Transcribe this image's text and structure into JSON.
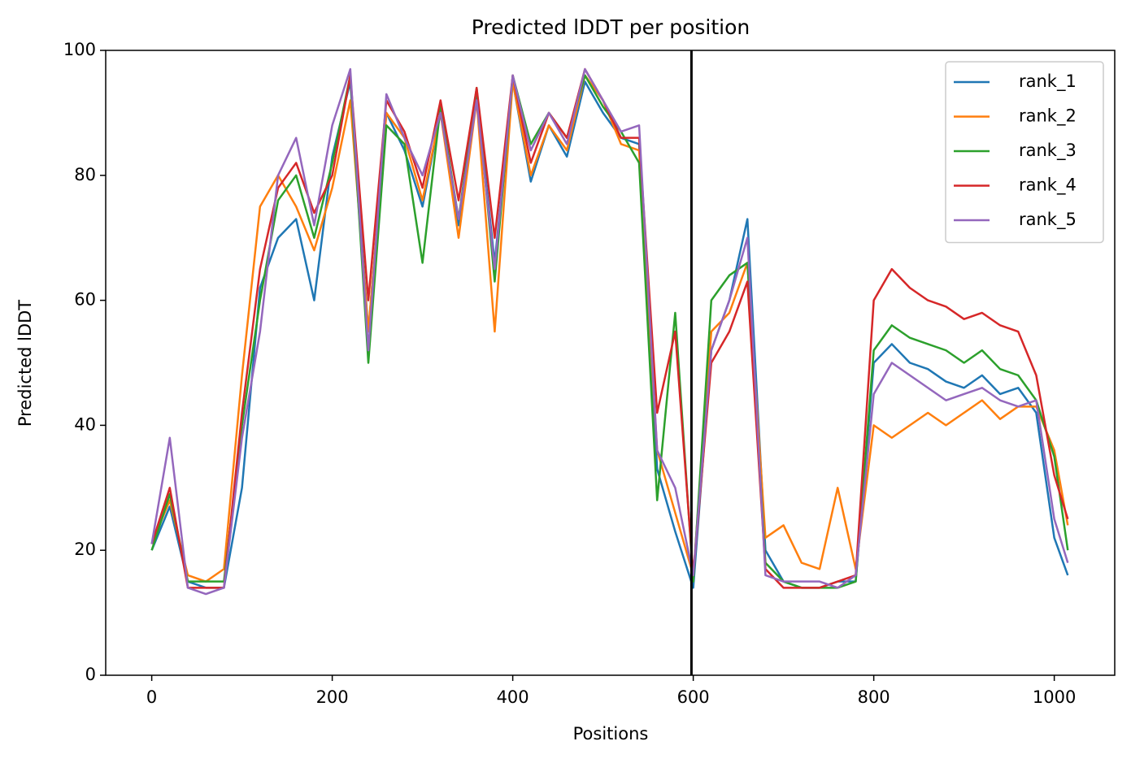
{
  "chart_data": {
    "type": "line",
    "title": "Predicted lDDT per position",
    "xlabel": "Positions",
    "ylabel": "Predicted lDDT",
    "x": [
      0,
      20,
      40,
      60,
      80,
      100,
      120,
      140,
      160,
      180,
      200,
      220,
      240,
      260,
      280,
      300,
      320,
      340,
      360,
      380,
      400,
      420,
      440,
      460,
      480,
      500,
      520,
      540,
      560,
      580,
      600,
      620,
      640,
      660,
      680,
      700,
      720,
      740,
      760,
      780,
      800,
      820,
      840,
      860,
      880,
      900,
      920,
      940,
      960,
      980,
      1000,
      1015
    ],
    "series": [
      {
        "name": "rank_1",
        "color": "#1f77b4",
        "values": [
          20,
          27,
          15,
          14,
          14,
          30,
          62,
          70,
          73,
          60,
          83,
          95,
          55,
          90,
          84,
          75,
          90,
          72,
          93,
          66,
          95,
          79,
          88,
          83,
          95,
          90,
          86,
          85,
          33,
          23,
          14,
          52,
          60,
          73,
          20,
          15,
          14,
          14,
          15,
          15,
          50,
          53,
          50,
          49,
          47,
          46,
          48,
          45,
          46,
          42,
          22,
          16
        ]
      },
      {
        "name": "rank_2",
        "color": "#ff7f0e",
        "values": [
          21,
          28,
          16,
          15,
          17,
          48,
          75,
          80,
          75,
          68,
          78,
          92,
          55,
          90,
          86,
          76,
          90,
          70,
          92,
          55,
          95,
          80,
          88,
          84,
          96,
          92,
          85,
          84,
          36,
          26,
          16,
          55,
          58,
          66,
          22,
          24,
          18,
          17,
          30,
          17,
          40,
          38,
          40,
          42,
          40,
          42,
          44,
          41,
          43,
          43,
          36,
          24
        ]
      },
      {
        "name": "rank_3",
        "color": "#2ca02c",
        "values": [
          20,
          29,
          15,
          15,
          15,
          40,
          60,
          76,
          80,
          70,
          82,
          96,
          50,
          88,
          85,
          66,
          91,
          73,
          94,
          63,
          96,
          85,
          90,
          86,
          96,
          91,
          87,
          82,
          28,
          58,
          15,
          60,
          64,
          66,
          18,
          15,
          14,
          14,
          14,
          15,
          52,
          56,
          54,
          53,
          52,
          50,
          52,
          49,
          48,
          44,
          35,
          20
        ]
      },
      {
        "name": "rank_4",
        "color": "#d62728",
        "values": [
          21,
          30,
          14,
          14,
          14,
          42,
          65,
          78,
          82,
          74,
          80,
          96,
          60,
          92,
          87,
          78,
          92,
          76,
          94,
          70,
          96,
          82,
          90,
          86,
          97,
          92,
          86,
          86,
          42,
          55,
          16,
          50,
          55,
          63,
          17,
          14,
          14,
          14,
          15,
          16,
          60,
          65,
          62,
          60,
          59,
          57,
          58,
          56,
          55,
          48,
          32,
          25
        ]
      },
      {
        "name": "rank_5",
        "color": "#9467bd",
        "values": [
          21,
          38,
          14,
          13,
          14,
          38,
          55,
          80,
          86,
          72,
          88,
          97,
          52,
          93,
          86,
          80,
          90,
          73,
          92,
          65,
          96,
          84,
          90,
          85,
          97,
          92,
          87,
          88,
          36,
          30,
          16,
          52,
          60,
          70,
          16,
          15,
          15,
          15,
          14,
          16,
          45,
          50,
          48,
          46,
          44,
          45,
          46,
          44,
          43,
          44,
          25,
          18
        ]
      }
    ],
    "vline_x": 598,
    "vline_color": "#000000",
    "xlim": [
      -51,
      1067
    ],
    "ylim": [
      0,
      100
    ],
    "xticks": [
      0,
      200,
      400,
      600,
      800,
      1000
    ],
    "yticks": [
      0,
      20,
      40,
      60,
      80,
      100
    ],
    "grid": false,
    "legend": "upper right"
  }
}
